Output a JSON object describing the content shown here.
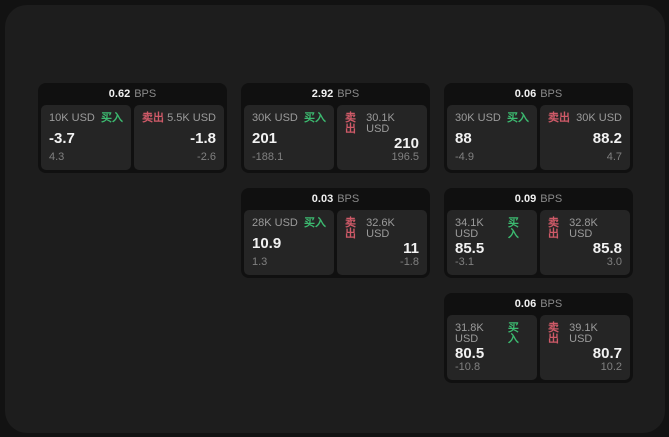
{
  "labels": {
    "buy": "买入",
    "sell": "卖出",
    "bps_unit": "BPS"
  },
  "theme": {
    "background": "#121212",
    "panel": "#1d1d1d",
    "card": "#101010",
    "tile": "#252525",
    "text_primary": "#f2f2f2",
    "text_secondary": "#9b9b9b",
    "text_dim": "#808080",
    "buy_green": "#3cba70",
    "sell_red": "#cf5a68"
  },
  "cards": [
    {
      "row": 1,
      "col": 1,
      "bps": "0.62",
      "buy": {
        "amount": "10K USD",
        "value": "-3.7",
        "delta": "4.3"
      },
      "sell": {
        "amount": "5.5K USD",
        "value": "-1.8",
        "delta": "-2.6"
      }
    },
    {
      "row": 1,
      "col": 2,
      "bps": "2.92",
      "buy": {
        "amount": "30K USD",
        "value": "201",
        "delta": "-188.1"
      },
      "sell": {
        "amount": "30.1K USD",
        "value": "210",
        "delta": "196.5"
      }
    },
    {
      "row": 1,
      "col": 3,
      "bps": "0.06",
      "buy": {
        "amount": "30K USD",
        "value": "88",
        "delta": "-4.9"
      },
      "sell": {
        "amount": "30K USD",
        "value": "88.2",
        "delta": "4.7"
      }
    },
    {
      "row": 2,
      "col": 2,
      "bps": "0.03",
      "buy": {
        "amount": "28K USD",
        "value": "10.9",
        "delta": "1.3"
      },
      "sell": {
        "amount": "32.6K USD",
        "value": "11",
        "delta": "-1.8"
      }
    },
    {
      "row": 2,
      "col": 3,
      "bps": "0.09",
      "buy": {
        "amount": "34.1K USD",
        "value": "85.5",
        "delta": "-3.1"
      },
      "sell": {
        "amount": "32.8K USD",
        "value": "85.8",
        "delta": "3.0"
      }
    },
    {
      "row": 3,
      "col": 3,
      "bps": "0.06",
      "buy": {
        "amount": "31.8K USD",
        "value": "80.5",
        "delta": "-10.8"
      },
      "sell": {
        "amount": "39.1K USD",
        "value": "80.7",
        "delta": "10.2"
      }
    }
  ]
}
